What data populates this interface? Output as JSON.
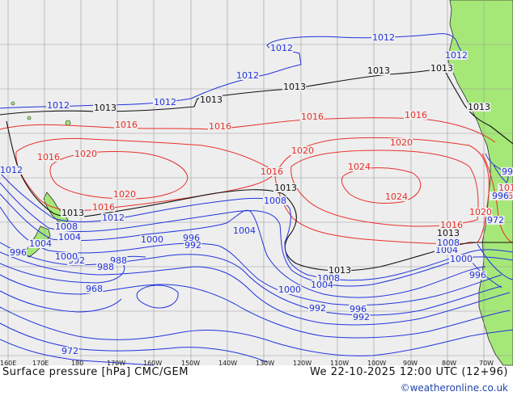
{
  "footer": {
    "title": "Surface pressure [hPa] CMC/GEM",
    "time": "We 22-10-2025 12:00 UTC (12+96)",
    "credit": "©weatheronline.co.uk"
  },
  "axis": {
    "lon_labels": [
      "160E",
      "170E",
      "180",
      "170W",
      "160W",
      "150W",
      "140W",
      "130W",
      "120W",
      "110W",
      "100W",
      "90W",
      "80W",
      "70W"
    ]
  },
  "colors": {
    "sea": "#eeeeee",
    "land": "#a6e878",
    "grid": "#9a9a9a",
    "high_isobar": "#e8302a",
    "low_isobar": "#2233dd",
    "standard_isobar": "#111111"
  },
  "isobar_labels": {
    "red": [
      "1016",
      "1016",
      "1016",
      "1016",
      "1020",
      "1020",
      "1016",
      "1020",
      "1016",
      "1016",
      "1020",
      "1024",
      "1024",
      "1016",
      "1020",
      "1016",
      "1016"
    ],
    "black": [
      "1013",
      "1013",
      "1013",
      "1013",
      "1013",
      "1013",
      "1013",
      "1013",
      "1013",
      "1013"
    ],
    "blue": [
      "1012",
      "1012",
      "1012",
      "1012",
      "1012",
      "1012",
      "1012",
      "1012",
      "1008",
      "1008",
      "1004",
      "1004",
      "1000",
      "996",
      "992",
      "988",
      "992",
      "988",
      "968",
      "972",
      "996",
      "992",
      "1000",
      "1008",
      "1004",
      "1000",
      "996",
      "992",
      "996",
      "992",
      "972",
      "1004",
      "1008",
      "1004",
      "1000",
      "996"
    ]
  }
}
